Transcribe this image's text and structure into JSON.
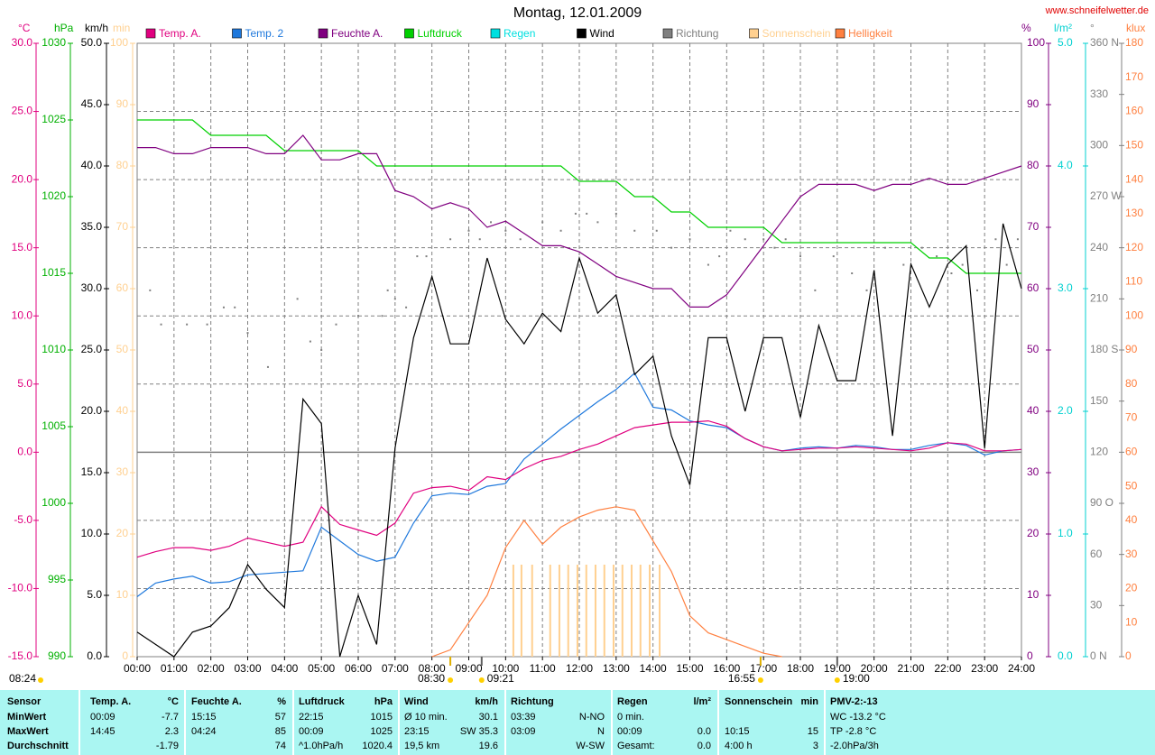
{
  "chart_data": {
    "type": "line",
    "title": "Montag, 12.01.2009",
    "source": "www.schneifelwetter.de",
    "xlim": [
      0,
      24
    ],
    "xticks": [
      {
        "value": 0,
        "label": "00:00"
      },
      {
        "value": 1,
        "label": "01:00"
      },
      {
        "value": 2,
        "label": "02:00"
      },
      {
        "value": 3,
        "label": "03:00"
      },
      {
        "value": 4,
        "label": "04:00"
      },
      {
        "value": 5,
        "label": "05:00"
      },
      {
        "value": 6,
        "label": "06:00"
      },
      {
        "value": 7,
        "label": "07:00"
      },
      {
        "value": 8,
        "label": "08:00"
      },
      {
        "value": 9,
        "label": "09:00"
      },
      {
        "value": 10,
        "label": "10:00"
      },
      {
        "value": 11,
        "label": "11:00"
      },
      {
        "value": 12,
        "label": "12:00"
      },
      {
        "value": 13,
        "label": "13:00"
      },
      {
        "value": 14,
        "label": "14:00"
      },
      {
        "value": 15,
        "label": "15:00"
      },
      {
        "value": 16,
        "label": "16:00"
      },
      {
        "value": 17,
        "label": "17:00"
      },
      {
        "value": 18,
        "label": "18:00"
      },
      {
        "value": 19,
        "label": "19:00"
      },
      {
        "value": 20,
        "label": "20:00"
      },
      {
        "value": 21,
        "label": "21:00"
      },
      {
        "value": 22,
        "label": "22:00"
      },
      {
        "value": 23,
        "label": "23:00"
      },
      {
        "value": 24,
        "label": "24:00"
      }
    ],
    "grid": true,
    "ylabel": "°C",
    "ycolor": "#e0007f",
    "ylim": [
      -15,
      30
    ],
    "yticks": [
      {
        "value": 30,
        "label": "30.0"
      },
      {
        "value": 25,
        "label": "25.0"
      },
      {
        "value": 20,
        "label": "20.0"
      },
      {
        "value": 15,
        "label": "15.0"
      },
      {
        "value": 10,
        "label": "10.0"
      },
      {
        "value": 5,
        "label": "5.0"
      },
      {
        "value": 0,
        "label": "0.0"
      },
      {
        "value": -5,
        "label": "-5.0"
      },
      {
        "value": -10,
        "label": "-10.0"
      },
      {
        "value": -15,
        "label": "-15.0"
      }
    ],
    "y2label": "hPa",
    "y2color": "#00b000",
    "y2lim": [
      990,
      1030
    ],
    "y2ticks": [
      1030,
      1025,
      1020,
      1015,
      1010,
      1005,
      1000,
      995,
      990
    ],
    "y3label": "km/h",
    "y3color": "#000000",
    "y3lim": [
      0,
      50
    ],
    "y3ticks": [
      {
        "value": 50,
        "label": "50.0"
      },
      {
        "value": 45,
        "label": "45.0"
      },
      {
        "value": 40,
        "label": "40.0"
      },
      {
        "value": 35,
        "label": "35.0"
      },
      {
        "value": 30,
        "label": "30.0"
      },
      {
        "value": 25,
        "label": "25.0"
      },
      {
        "value": 20,
        "label": "20.0"
      },
      {
        "value": 15,
        "label": "15.0"
      },
      {
        "value": 10,
        "label": "10.0"
      },
      {
        "value": 5,
        "label": "5.0"
      },
      {
        "value": 0,
        "label": "0.0"
      }
    ],
    "y4label": "min",
    "y4color": "#ffd090",
    "y4lim": [
      0,
      100
    ],
    "y4ticks": [
      100,
      90,
      80,
      70,
      60,
      50,
      40,
      30,
      20,
      10,
      0
    ],
    "y5label": "%",
    "y5color": "#800080",
    "y5lim": [
      0,
      100
    ],
    "y5ticks": [
      100,
      90,
      80,
      70,
      60,
      50,
      40,
      30,
      20,
      10,
      0
    ],
    "y6label": "l/m²",
    "y6color": "#00d0d0",
    "y6lim": [
      0,
      5
    ],
    "y6ticks": [
      {
        "value": 5,
        "label": "5.0"
      },
      {
        "value": 4,
        "label": "4.0"
      },
      {
        "value": 3,
        "label": "3.0"
      },
      {
        "value": 2,
        "label": "2.0"
      },
      {
        "value": 1,
        "label": "1.0"
      },
      {
        "value": 0,
        "label": "0.0"
      }
    ],
    "y7label": "°",
    "y7color": "#808080",
    "y7lim": [
      0,
      360
    ],
    "y7ticks": [
      {
        "value": 360,
        "label": "360 N"
      },
      330,
      300,
      {
        "value": 270,
        "label": "270 W"
      },
      240,
      210,
      {
        "value": 180,
        "label": "180 S"
      },
      150,
      120,
      {
        "value": 90,
        "label": "90 O"
      },
      60,
      30,
      {
        "value": 0,
        "label": "0 N"
      }
    ],
    "y8label": "klux",
    "y8color": "#ff8040",
    "y8lim": [
      0,
      180
    ],
    "y8ticks": [
      180,
      170,
      160,
      150,
      140,
      130,
      120,
      110,
      100,
      90,
      80,
      70,
      60,
      50,
      40,
      30,
      20,
      10,
      0
    ],
    "x": [
      0,
      0.5,
      1,
      1.5,
      2,
      2.5,
      3,
      3.5,
      4,
      4.5,
      5,
      5.5,
      6,
      6.5,
      7,
      7.5,
      8,
      8.5,
      9,
      9.5,
      10,
      10.5,
      11,
      11.5,
      12,
      12.5,
      13,
      13.5,
      14,
      14.5,
      15,
      15.5,
      16,
      16.5,
      17,
      17.5,
      18,
      18.5,
      19,
      19.5,
      20,
      20.5,
      21,
      21.5,
      22,
      22.5,
      23,
      23.5,
      24
    ],
    "series": [
      {
        "name": "Temp. A.",
        "color": "#e0007f",
        "axis": "y",
        "values": [
          -7.7,
          -7.3,
          -7.0,
          -7.0,
          -7.2,
          -6.9,
          -6.3,
          -6.6,
          -6.9,
          -6.6,
          -4.0,
          -5.3,
          -5.7,
          -6.1,
          -5.2,
          -3.0,
          -2.6,
          -2.5,
          -2.8,
          -1.8,
          -2.0,
          -1.2,
          -0.6,
          -0.3,
          0.2,
          0.6,
          1.2,
          1.8,
          2.0,
          2.2,
          2.2,
          2.3,
          1.9,
          1.0,
          0.4,
          0.1,
          0.2,
          0.3,
          0.3,
          0.4,
          0.3,
          0.2,
          0.1,
          0.3,
          0.7,
          0.6,
          0.1,
          0.1,
          0.2
        ]
      },
      {
        "name": "Temp. 2",
        "color": "#1e78dc",
        "axis": "y",
        "values": [
          -10.6,
          -9.6,
          -9.3,
          -9.1,
          -9.6,
          -9.5,
          -9.0,
          -8.9,
          -8.8,
          -8.7,
          -5.5,
          -6.5,
          -7.5,
          -8.0,
          -7.7,
          -5.2,
          -3.2,
          -3.0,
          -3.1,
          -2.5,
          -2.3,
          -0.5,
          0.6,
          1.7,
          2.7,
          3.7,
          4.6,
          5.8,
          3.3,
          3.1,
          2.3,
          2.0,
          1.8,
          1.0,
          0.4,
          0.1,
          0.3,
          0.4,
          0.3,
          0.5,
          0.4,
          0.2,
          0.2,
          0.5,
          0.7,
          0.5,
          -0.2,
          0.1,
          0.2
        ]
      },
      {
        "name": "Feuchte A.",
        "color": "#800080",
        "axis": "y5",
        "values": [
          83,
          83,
          82,
          82,
          83,
          83,
          83,
          82,
          82,
          85,
          81,
          81,
          82,
          82,
          76,
          75,
          73,
          74,
          73,
          70,
          71,
          69,
          67,
          67,
          66,
          64,
          62,
          61,
          60,
          60,
          57,
          57,
          59,
          63,
          67,
          71,
          75,
          77,
          77,
          77,
          76,
          77,
          77,
          78,
          77,
          77,
          78,
          79,
          80
        ]
      },
      {
        "name": "Luftdruck",
        "color": "#00d000",
        "axis": "y2",
        "values": [
          1025,
          1025,
          1025,
          1025,
          1024,
          1024,
          1024,
          1024,
          1023,
          1023,
          1023,
          1023,
          1023,
          1022,
          1022,
          1022,
          1022,
          1022,
          1022,
          1022,
          1022,
          1022,
          1022,
          1022,
          1021,
          1021,
          1021,
          1020,
          1020,
          1019,
          1019,
          1018,
          1018,
          1018,
          1018,
          1017,
          1017,
          1017,
          1017,
          1017,
          1017,
          1017,
          1017,
          1016,
          1016,
          1015,
          1015,
          1015,
          1015
        ]
      },
      {
        "name": "Regen",
        "color": "#00e0e0",
        "axis": "y6",
        "values": [
          null,
          null,
          null,
          null,
          null,
          null,
          null,
          null,
          null,
          null,
          null,
          null,
          null,
          null,
          null,
          null,
          null,
          null,
          null,
          null,
          null,
          null,
          null,
          null,
          null,
          null,
          null,
          null,
          null,
          null,
          null,
          null,
          null,
          null,
          null,
          null,
          null,
          null,
          null,
          null,
          null,
          null,
          null,
          null,
          null,
          null,
          null,
          null,
          null
        ]
      },
      {
        "name": "Wind",
        "color": "#000000",
        "axis": "y3",
        "values": [
          2,
          1,
          0,
          2,
          2.5,
          4,
          7.5,
          5.5,
          4,
          21,
          19,
          0,
          5,
          1,
          17,
          26,
          31,
          25.5,
          25.5,
          32.5,
          27.5,
          25.5,
          28,
          26.5,
          32.5,
          28,
          29.5,
          23,
          24.5,
          18,
          14,
          26,
          26,
          20,
          26,
          26,
          19.5,
          27,
          22.5,
          22.5,
          31.5,
          18,
          32,
          28.5,
          32,
          33.5,
          17,
          35.3,
          30
        ]
      },
      {
        "name": "Richtung",
        "color": "#808080",
        "axis": "y7",
        "type": "scatter",
        "x": [
          0.35,
          0.65,
          1.35,
          1.9,
          2.35,
          2.65,
          3.0,
          3.55,
          4.35,
          4.7,
          5.0,
          5.4,
          6.0,
          6.65,
          6.8,
          7.0,
          7.3,
          7.6,
          7.85,
          8.5,
          9.0,
          9.3,
          9.6,
          10.0,
          10.4,
          11.0,
          11.5,
          11.9,
          12.2,
          12.5,
          13.0,
          13.5,
          14.1,
          14.5,
          15.0,
          15.5,
          15.8,
          16.1,
          16.5,
          17.0,
          17.3,
          17.6,
          18.0,
          18.4,
          18.9,
          19.4,
          19.8,
          20.3,
          20.8,
          21.3,
          21.7,
          22.1,
          22.4,
          22.8,
          23.3,
          23.6,
          23.9
        ],
        "values": [
          215,
          195,
          195,
          195,
          205,
          205,
          190,
          170,
          210,
          185,
          180,
          195,
          200,
          200,
          215,
          210,
          205,
          235,
          235,
          245,
          250,
          245,
          255,
          250,
          245,
          255,
          250,
          260,
          260,
          255,
          260,
          250,
          250,
          240,
          245,
          230,
          235,
          250,
          245,
          245,
          240,
          245,
          235,
          215,
          235,
          225,
          215,
          240,
          230,
          240,
          235,
          225,
          230,
          215,
          245,
          230,
          245
        ]
      },
      {
        "name": "Sonnenschein",
        "color": "#ffd090",
        "axis": "y4",
        "type": "bar",
        "x": [
          10.21,
          10.43,
          10.72,
          11.21,
          11.46,
          11.7,
          11.95,
          12.19,
          12.44,
          12.68,
          12.93,
          13.17,
          13.42,
          13.66,
          13.91,
          14.18
        ],
        "values": [
          15,
          15,
          15,
          15,
          15,
          15,
          15,
          15,
          15,
          15,
          15,
          15,
          15,
          15,
          15,
          15
        ]
      },
      {
        "name": "Helligkeit",
        "color": "#ff8040",
        "axis": "y8",
        "values": [
          null,
          null,
          null,
          null,
          null,
          null,
          null,
          null,
          null,
          null,
          null,
          null,
          null,
          null,
          null,
          null,
          0,
          2,
          10,
          18,
          32,
          40,
          33,
          38,
          41,
          43,
          44,
          43,
          34,
          25,
          12,
          7,
          5,
          3,
          1,
          0,
          null,
          null,
          null,
          null,
          null,
          null,
          null,
          null,
          null,
          null,
          null,
          null,
          null
        ]
      }
    ],
    "annotations": [
      {
        "text": "08:24"
      },
      {
        "text": "08:30",
        "x": 8.5
      },
      {
        "text": "09:21",
        "x": 9.35
      },
      {
        "text": "16:55",
        "x": 16.92
      },
      {
        "text": "19:00",
        "x": 19.0
      }
    ]
  },
  "table": {
    "header": [
      "Sensor",
      "Temp. A.",
      "°C",
      "Feuchte A.",
      "%",
      "Luftdruck",
      "hPa",
      "Wind",
      "km/h",
      "Richtung",
      null,
      "Regen",
      "l/m²",
      "Sonnenschein",
      "min",
      "PMV-2:-13"
    ],
    "rows": [
      [
        "MinWert",
        "00:09",
        "-7.7",
        "15:15",
        "57",
        "22:15",
        "1015",
        "Ø 10 min.",
        "30.1",
        "03:39",
        "N-NO",
        "0 min.",
        null,
        null,
        null,
        "WC -13.2 °C"
      ],
      [
        "MaxWert",
        "14:45",
        "2.3",
        "04:24",
        "85",
        "00:09",
        "1025",
        "23:15",
        "SW 35.3",
        "03:09",
        "N",
        "00:09",
        "0.0",
        "10:15",
        "15",
        "TP -2.8 °C"
      ],
      [
        "Durchschnitt",
        null,
        "-1.79",
        null,
        "74",
        "^1.0hPa/h",
        "1020.4",
        "19,5 km",
        "19.6",
        null,
        "W-SW",
        "Gesamt:",
        "0.0",
        "4:00 h",
        "3",
        "-2.0hPa/3h"
      ]
    ]
  }
}
